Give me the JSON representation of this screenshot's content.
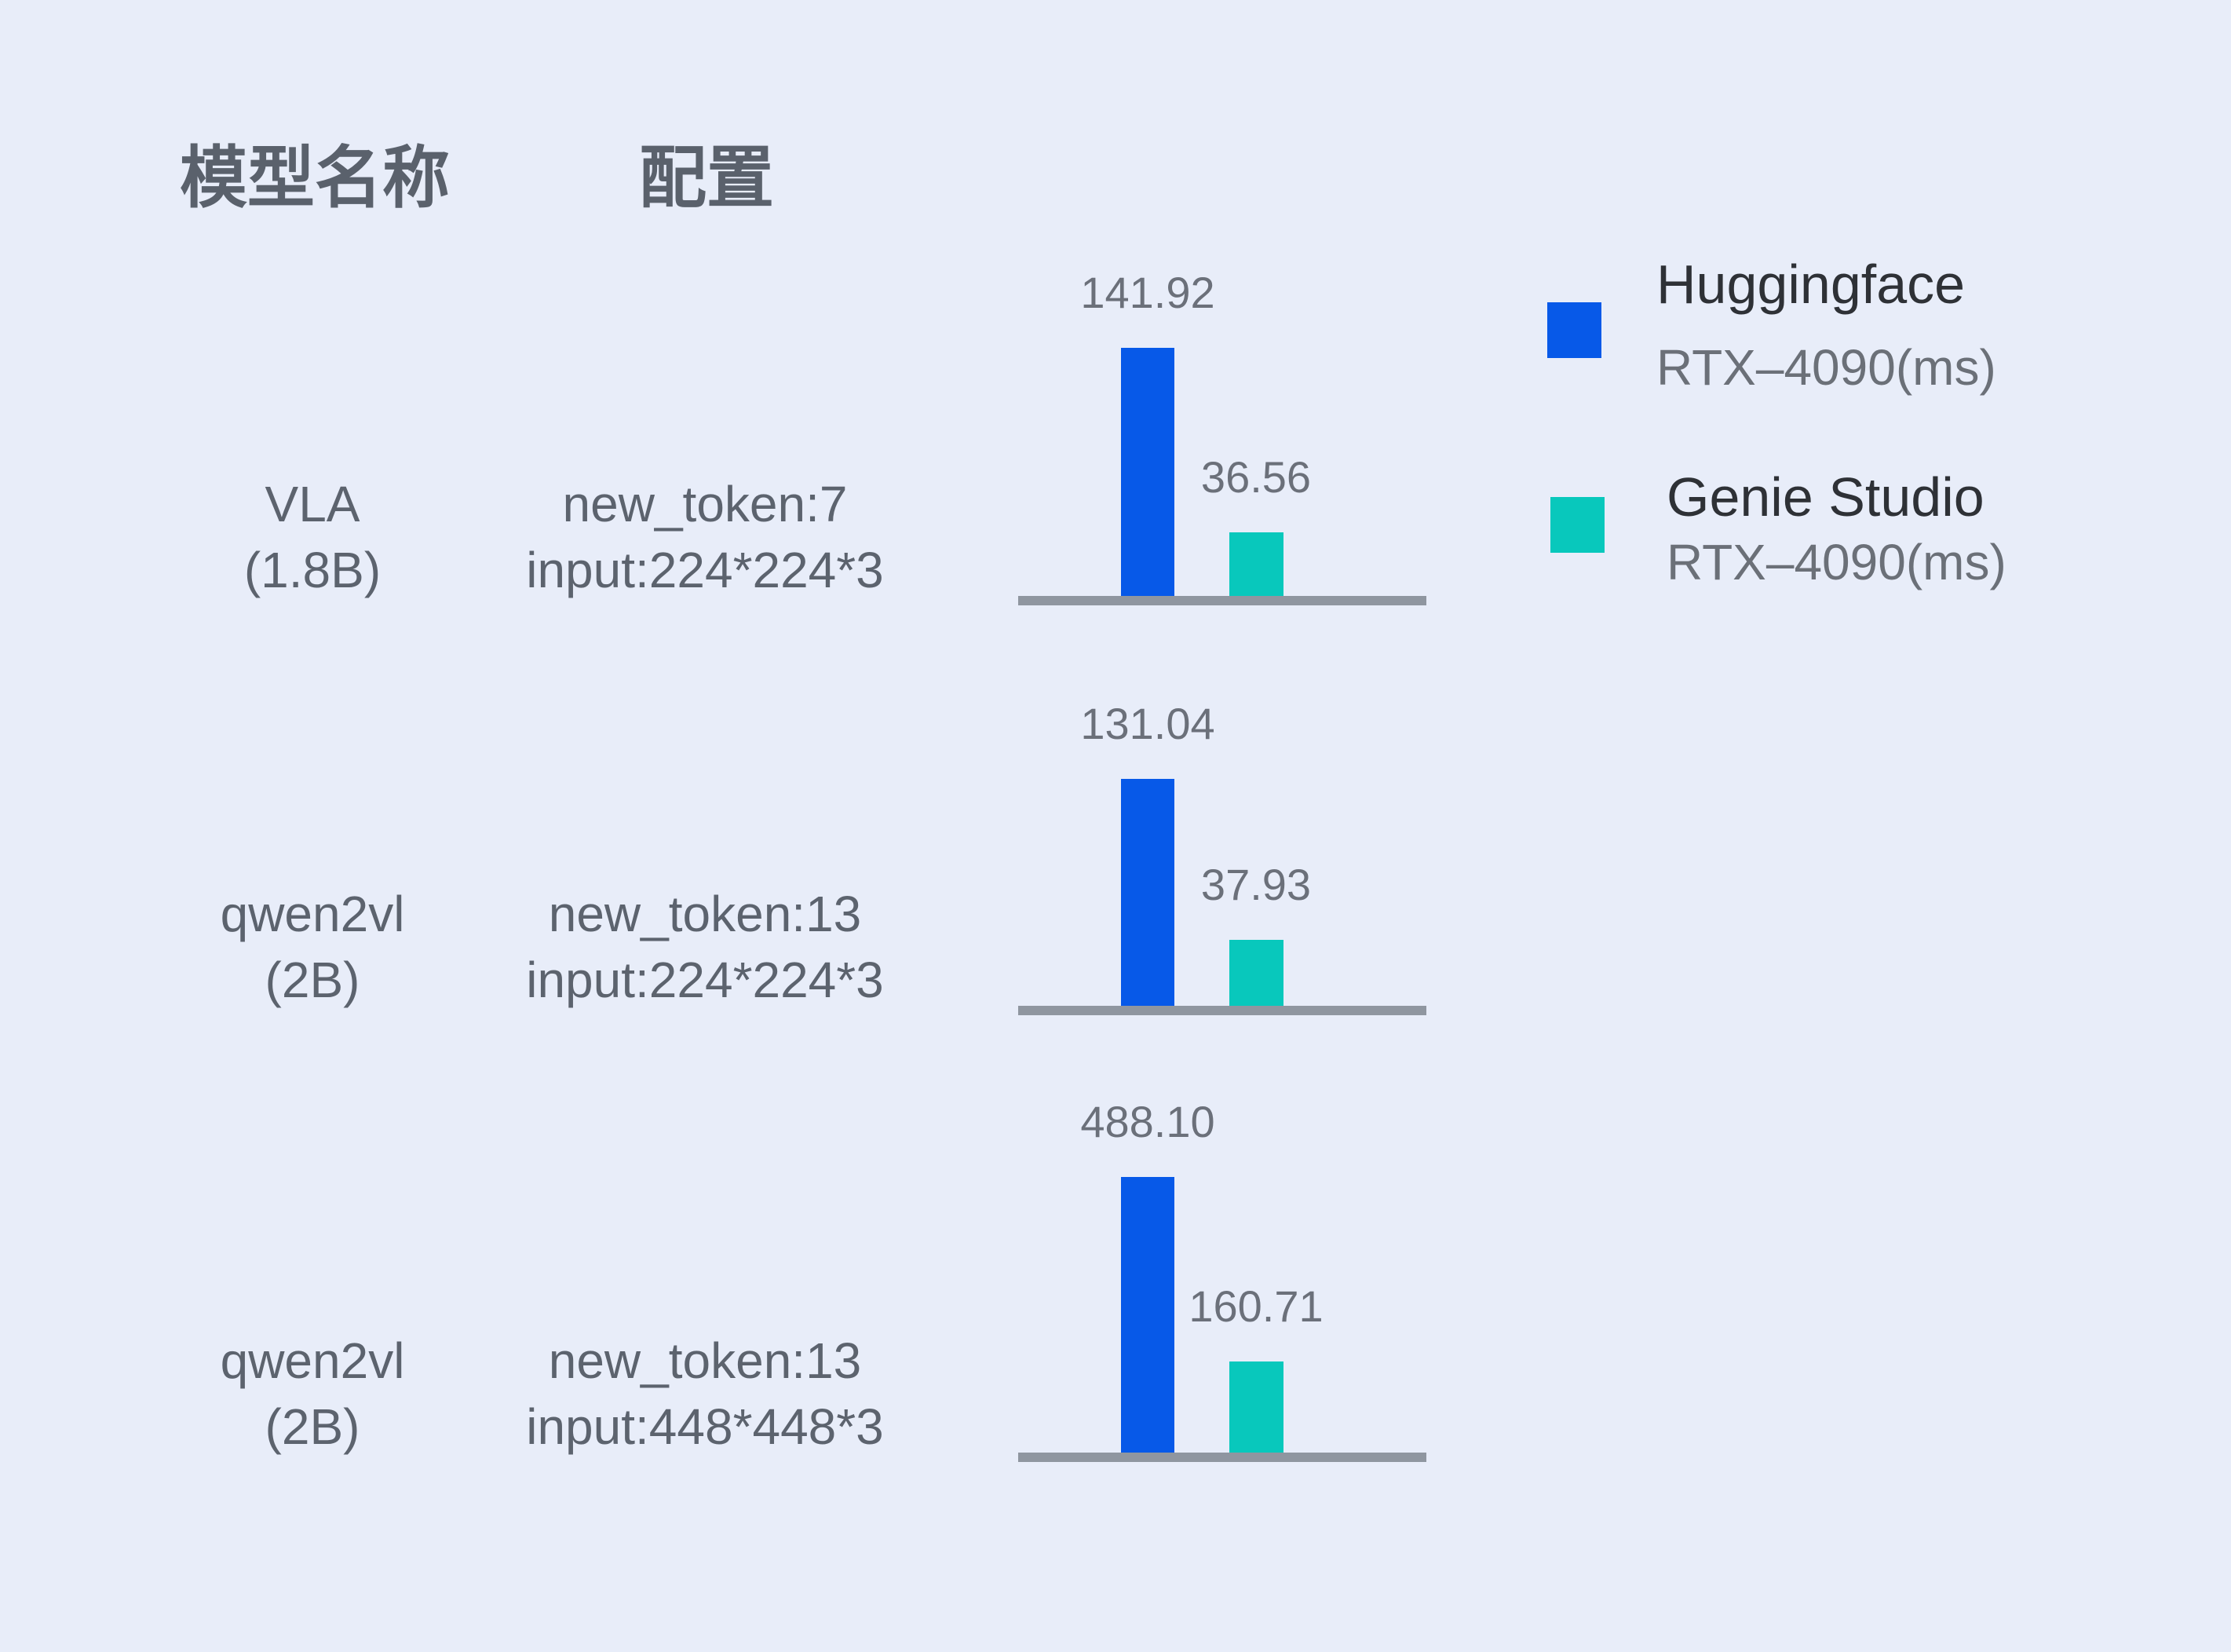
{
  "colors": {
    "background": "#E8EDF9",
    "huggingface_bar": "#0759E8",
    "genie_bar": "#08C8BC",
    "axis_line": "#8F96A0",
    "header_text": "#5A616C",
    "label_text": "#5C636E",
    "value_text": "#6B707A",
    "legend_name_text": "#2E3136",
    "legend_sub_text": "#6B7078"
  },
  "chart_data": {
    "type": "bar",
    "title": "",
    "unit": "ms",
    "grid": false,
    "legend_position": "top-right",
    "columns": {
      "model": "模型名称",
      "config": "配置"
    },
    "series": [
      {
        "name": "Huggingface",
        "sub": "RTX–4090(ms)",
        "color": "#0759E8"
      },
      {
        "name": "Genie Studio",
        "sub": "RTX–4090(ms)",
        "color": "#08C8BC"
      }
    ],
    "rows": [
      {
        "model_line1": "VLA",
        "model_line2": "(1.8B)",
        "config_line1": "new_token:7",
        "config_line2": "input:224*224*3",
        "huggingface_ms": 141.92,
        "genie_ms": 36.56,
        "huggingface_label": "141.92",
        "genie_label": "36.56"
      },
      {
        "model_line1": "qwen2vl",
        "model_line2": "(2B)",
        "config_line1": "new_token:13",
        "config_line2": "input:224*224*3",
        "huggingface_ms": 131.04,
        "genie_ms": 37.93,
        "huggingface_label": "131.04",
        "genie_label": "37.93"
      },
      {
        "model_line1": "qwen2vl",
        "model_line2": "(2B)",
        "config_line1": "new_token:13",
        "config_line2": "input:448*448*3",
        "huggingface_ms": 488.1,
        "genie_ms": 160.71,
        "huggingface_label": "488.10",
        "genie_label": "160.71"
      }
    ]
  }
}
